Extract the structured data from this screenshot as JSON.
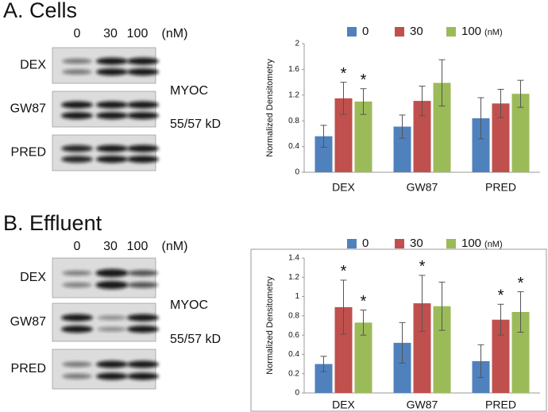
{
  "panels": [
    {
      "label": "A.  Cells",
      "lanes": [
        "0",
        "30",
        "100",
        "(nM)"
      ],
      "rows": [
        "DEX",
        "GW87",
        "PRED"
      ],
      "protein": "MYOC",
      "size": "55/57 kD"
    },
    {
      "label": "B.  Effluent",
      "lanes": [
        "0",
        "30",
        "100",
        "(nM)"
      ],
      "rows": [
        "DEX",
        "GW87",
        "PRED"
      ],
      "protein": "MYOC",
      "size": "55/57 kD"
    }
  ],
  "chart_data": [
    {
      "type": "bar",
      "y_label": "Normalized Densitometry",
      "legend_note": "(nM)",
      "frame": false,
      "grid": false,
      "categories": [
        "DEX",
        "GW87",
        "PRED"
      ],
      "ylim": [
        0,
        2
      ],
      "yticks": [
        0,
        0.4,
        0.8,
        1.2,
        1.6,
        2
      ],
      "series": [
        {
          "name": "0",
          "color": "#4f81bd",
          "values": [
            0.56,
            0.71,
            0.84
          ],
          "errors": [
            0.17,
            0.18,
            0.32
          ],
          "annotations": [
            null,
            null,
            null
          ]
        },
        {
          "name": "30",
          "color": "#c0504d",
          "values": [
            1.15,
            1.11,
            1.07
          ],
          "errors": [
            0.25,
            0.23,
            0.22
          ],
          "annotations": [
            "*",
            null,
            null
          ]
        },
        {
          "name": "100",
          "color": "#9bbb59",
          "values": [
            1.1,
            1.39,
            1.22
          ],
          "errors": [
            0.2,
            0.36,
            0.21
          ],
          "annotations": [
            "*",
            null,
            null
          ]
        }
      ]
    },
    {
      "type": "bar",
      "y_label": "Normalized Densitometry",
      "legend_note": "(nM)",
      "frame": true,
      "grid": false,
      "categories": [
        "DEX",
        "GW87",
        "PRED"
      ],
      "ylim": [
        0,
        1.4
      ],
      "yticks": [
        0,
        0.2,
        0.4,
        0.6,
        0.8,
        1,
        1.2,
        1.4
      ],
      "series": [
        {
          "name": "0",
          "color": "#4f81bd",
          "values": [
            0.3,
            0.52,
            0.33
          ],
          "errors": [
            0.08,
            0.21,
            0.17
          ],
          "annotations": [
            null,
            null,
            null
          ]
        },
        {
          "name": "30",
          "color": "#c0504d",
          "values": [
            0.89,
            0.93,
            0.76
          ],
          "errors": [
            0.28,
            0.29,
            0.16
          ],
          "annotations": [
            "*",
            "*",
            "*"
          ]
        },
        {
          "name": "100",
          "color": "#9bbb59",
          "values": [
            0.73,
            0.9,
            0.84
          ],
          "errors": [
            0.13,
            0.25,
            0.21
          ],
          "annotations": [
            "*",
            null,
            "*"
          ]
        }
      ]
    }
  ]
}
